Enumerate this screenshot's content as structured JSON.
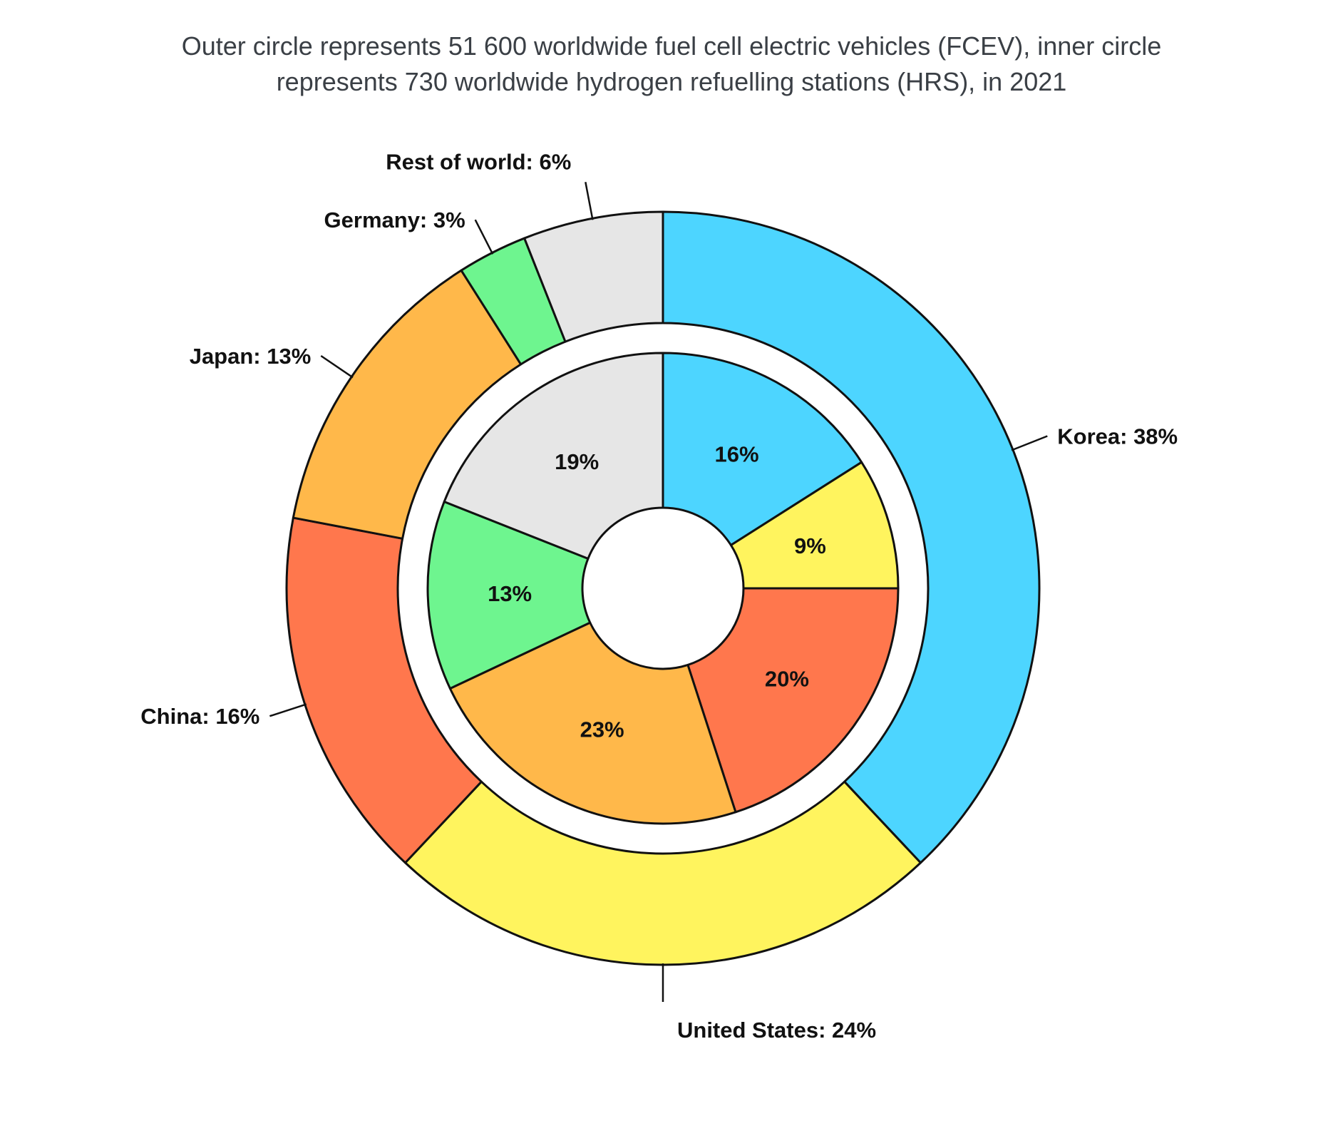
{
  "chart_data": {
    "type": "pie",
    "title_lines": [
      "Outer circle represents 51 600 worldwide fuel cell electric vehicles (FCEV), inner circle",
      "represents 730 worldwide hydrogen refuelling stations (HRS), in 2021"
    ],
    "categories": [
      "Korea",
      "United States",
      "China",
      "Japan",
      "Germany",
      "Rest of world"
    ],
    "colors": [
      "#4dd5ff",
      "#fff45e",
      "#ff774d",
      "#ffb84a",
      "#6ef58f",
      "#e6e6e6"
    ],
    "outer": {
      "values": [
        38,
        24,
        16,
        13,
        3,
        6
      ],
      "labels": [
        "Korea: 38%",
        "United States: 24%",
        "China: 16%",
        "Japan: 13%",
        "Germany: 3%",
        "Rest of world: 6%"
      ]
    },
    "inner": {
      "values": [
        16,
        9,
        20,
        23,
        13,
        19
      ],
      "labels": [
        "16%",
        "9%",
        "20%",
        "23%",
        "13%",
        "19%"
      ]
    }
  }
}
